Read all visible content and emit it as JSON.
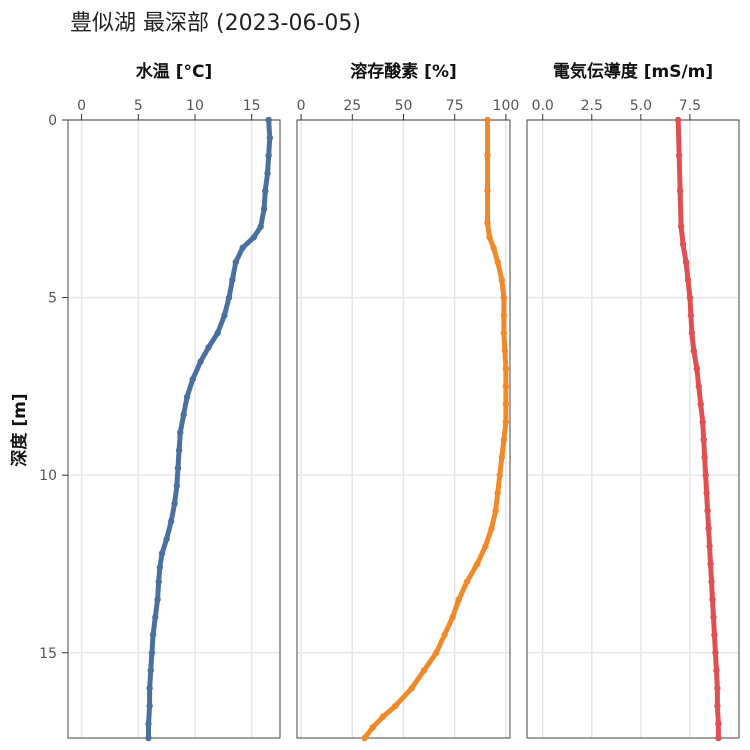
{
  "title": "豊似湖 最深部 (2023-06-05)",
  "chart_data": {
    "type": "line",
    "ylabel": "深度 [m]",
    "y_axis_reversed": true,
    "ylim": [
      0,
      17.4
    ],
    "yticks": [
      0,
      5,
      10,
      15
    ],
    "grid": true,
    "panels": [
      {
        "name": "水温 [°C]",
        "color": "#4a70a0",
        "xlim": [
          -1.2,
          17.5
        ],
        "xticks": [
          0,
          5,
          10,
          15
        ],
        "xtick_labels": [
          "0",
          "5",
          "10",
          "15"
        ],
        "points": [
          [
            16.5,
            0
          ],
          [
            16.6,
            0.5
          ],
          [
            16.5,
            1.0
          ],
          [
            16.4,
            1.5
          ],
          [
            16.2,
            2.0
          ],
          [
            16.1,
            2.5
          ],
          [
            15.8,
            3.0
          ],
          [
            15.2,
            3.3
          ],
          [
            14.2,
            3.6
          ],
          [
            13.6,
            4.0
          ],
          [
            13.3,
            4.5
          ],
          [
            13.0,
            5.0
          ],
          [
            12.6,
            5.5
          ],
          [
            12.0,
            6.0
          ],
          [
            11.2,
            6.4
          ],
          [
            10.5,
            6.8
          ],
          [
            9.8,
            7.3
          ],
          [
            9.3,
            7.8
          ],
          [
            9.0,
            8.3
          ],
          [
            8.7,
            8.8
          ],
          [
            8.6,
            9.3
          ],
          [
            8.5,
            9.8
          ],
          [
            8.4,
            10.3
          ],
          [
            8.2,
            10.8
          ],
          [
            7.9,
            11.3
          ],
          [
            7.5,
            11.8
          ],
          [
            7.1,
            12.2
          ],
          [
            6.9,
            12.6
          ],
          [
            6.8,
            13.0
          ],
          [
            6.7,
            13.5
          ],
          [
            6.5,
            14.0
          ],
          [
            6.3,
            14.5
          ],
          [
            6.2,
            15.0
          ],
          [
            6.1,
            15.5
          ],
          [
            6.0,
            16.0
          ],
          [
            6.0,
            16.5
          ],
          [
            5.9,
            17.0
          ],
          [
            5.9,
            17.4
          ]
        ]
      },
      {
        "name": "溶存酸素 [%]",
        "color": "#f0892a",
        "xlim": [
          -2,
          102
        ],
        "xticks": [
          0,
          25,
          50,
          75,
          100
        ],
        "xtick_labels": [
          "0",
          "25",
          "50",
          "75",
          "100"
        ],
        "points": [
          [
            91,
            0
          ],
          [
            91,
            1.0
          ],
          [
            91,
            2.0
          ],
          [
            91,
            2.9
          ],
          [
            92,
            3.3
          ],
          [
            94,
            3.6
          ],
          [
            96,
            4.0
          ],
          [
            98,
            4.5
          ],
          [
            99,
            5.0
          ],
          [
            99,
            5.5
          ],
          [
            99,
            6.0
          ],
          [
            99.5,
            6.5
          ],
          [
            100,
            7.0
          ],
          [
            100,
            7.5
          ],
          [
            100,
            8.0
          ],
          [
            100,
            8.5
          ],
          [
            99,
            9.0
          ],
          [
            98,
            9.5
          ],
          [
            97,
            10.0
          ],
          [
            96,
            10.5
          ],
          [
            95,
            11.0
          ],
          [
            93,
            11.5
          ],
          [
            90,
            12.0
          ],
          [
            86,
            12.5
          ],
          [
            81,
            13.0
          ],
          [
            77,
            13.5
          ],
          [
            74,
            14.0
          ],
          [
            70,
            14.5
          ],
          [
            66,
            15.0
          ],
          [
            60,
            15.5
          ],
          [
            54,
            16.0
          ],
          [
            46,
            16.5
          ],
          [
            40,
            16.8
          ],
          [
            35,
            17.1
          ],
          [
            31,
            17.4
          ]
        ]
      },
      {
        "name": "電気伝導度 [mS/m]",
        "color": "#e05050",
        "xlim": [
          -0.8,
          10.0
        ],
        "xticks": [
          0,
          2.5,
          5.0,
          7.5
        ],
        "xtick_labels": [
          "0.0",
          "2.5",
          "5.0",
          "7.5"
        ],
        "points": [
          [
            6.9,
            0
          ],
          [
            6.95,
            1.0
          ],
          [
            7.0,
            2.0
          ],
          [
            7.05,
            3.0
          ],
          [
            7.15,
            3.5
          ],
          [
            7.3,
            4.0
          ],
          [
            7.4,
            4.5
          ],
          [
            7.5,
            5.0
          ],
          [
            7.55,
            5.5
          ],
          [
            7.6,
            6.0
          ],
          [
            7.7,
            6.5
          ],
          [
            7.85,
            7.0
          ],
          [
            7.95,
            7.5
          ],
          [
            8.05,
            8.0
          ],
          [
            8.15,
            8.5
          ],
          [
            8.2,
            9.0
          ],
          [
            8.25,
            9.5
          ],
          [
            8.3,
            10.0
          ],
          [
            8.35,
            10.5
          ],
          [
            8.4,
            11.0
          ],
          [
            8.45,
            11.5
          ],
          [
            8.5,
            12.0
          ],
          [
            8.55,
            12.5
          ],
          [
            8.6,
            13.0
          ],
          [
            8.65,
            13.5
          ],
          [
            8.7,
            14.0
          ],
          [
            8.75,
            14.5
          ],
          [
            8.8,
            15.0
          ],
          [
            8.85,
            15.5
          ],
          [
            8.9,
            16.0
          ],
          [
            8.9,
            16.5
          ],
          [
            8.95,
            17.0
          ],
          [
            8.95,
            17.4
          ]
        ]
      }
    ]
  }
}
